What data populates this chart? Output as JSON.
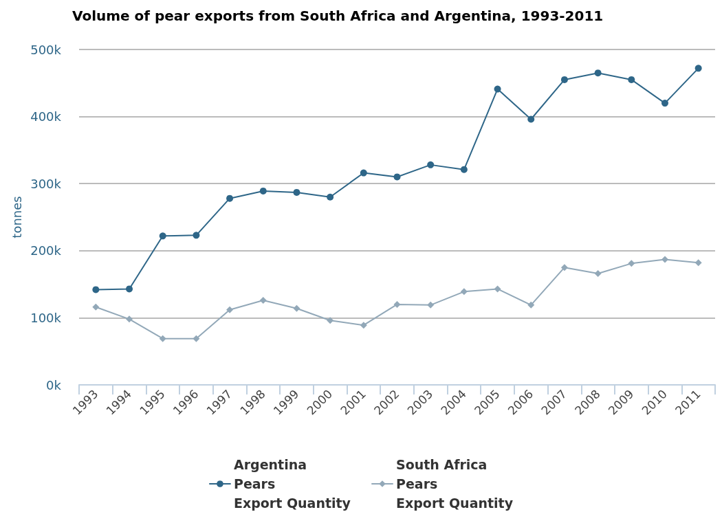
{
  "chart_data": {
    "type": "line",
    "title": "Volume of pear exports from South Africa and Argentina, 1993-2011",
    "ylabel": "tonnes",
    "categories": [
      "1993",
      "1994",
      "1995",
      "1996",
      "1997",
      "1998",
      "1999",
      "2000",
      "2001",
      "2002",
      "2003",
      "2004",
      "2005",
      "2006",
      "2007",
      "2008",
      "2009",
      "2010",
      "2011"
    ],
    "series": [
      {
        "name": "Argentina\nPears\nExport Quantity",
        "color": "#2e6688",
        "marker": "circle",
        "values": [
          142000,
          143000,
          222000,
          223000,
          278000,
          289000,
          287000,
          280000,
          316000,
          310000,
          328000,
          321000,
          441000,
          396000,
          455000,
          465000,
          455000,
          420000,
          472000
        ]
      },
      {
        "name": "South Africa\nPears\nExport Quantity",
        "color": "#92a8b8",
        "marker": "diamond",
        "values": [
          116000,
          98000,
          69000,
          69000,
          112000,
          126000,
          114000,
          96000,
          89000,
          120000,
          119000,
          139000,
          143000,
          119000,
          175000,
          166000,
          181000,
          187000,
          182000
        ]
      }
    ],
    "ylim": [
      0,
      500000
    ],
    "yticks": [
      {
        "value": 0,
        "label": "0k"
      },
      {
        "value": 100000,
        "label": "100k"
      },
      {
        "value": 200000,
        "label": "200k"
      },
      {
        "value": 300000,
        "label": "300k"
      },
      {
        "value": 400000,
        "label": "400k"
      },
      {
        "value": 500000,
        "label": "500k"
      }
    ],
    "grid": "y",
    "legend": "bottom",
    "line_style": "solid"
  }
}
